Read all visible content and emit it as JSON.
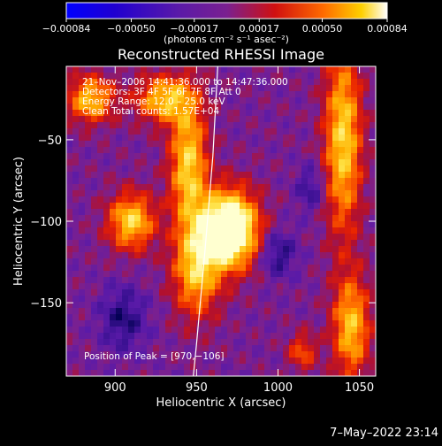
{
  "chart_data": {
    "type": "heatmap",
    "title": "Reconstructed RHESSI Image",
    "xlabel": "Heliocentric X (arcsec)",
    "ylabel": "Heliocentric Y (arcsec)",
    "xlim": [
      870,
      1060
    ],
    "ylim": [
      -195,
      -5
    ],
    "x_ticks": [
      900,
      950,
      1000,
      1050
    ],
    "x_tick_labels": [
      "900",
      "950",
      "1000",
      "1050"
    ],
    "y_ticks": [
      -50,
      -100,
      -150
    ],
    "y_tick_labels": [
      "−50",
      "−100",
      "−150"
    ],
    "colorbar": {
      "min": -0.00084,
      "max": 0.00084,
      "ticks": [
        -0.00084,
        -0.0005,
        -0.00017,
        0.00017,
        0.0005,
        0.00084
      ],
      "tick_labels": [
        "−0.00084",
        "−0.00050",
        "−0.00017",
        "0.00017",
        "0.00050",
        "0.00084"
      ],
      "unit_label": "(photons cm⁻² s⁻¹ asec⁻²)"
    },
    "annotations": [
      "21–Nov–2006 14:41:36.000 to 14:47:36.000",
      "Detectors: 3F 4F 5F 6F 7F 8F Att 0",
      "Energy Range: 12.0 – 25.0 keV",
      "Clean    Total counts: 1.57E+04"
    ],
    "peak_label": "Position of Peak = [970,−106]",
    "peak": [
      970,
      -106
    ],
    "limb": [
      [
        963,
        -5
      ],
      [
        960,
        -60
      ],
      [
        955,
        -120
      ],
      [
        950,
        -175
      ],
      [
        948,
        -195
      ]
    ],
    "sources": [
      {
        "x": 970,
        "y": -105,
        "sx": 12,
        "sy": 16,
        "amp": 1.0
      },
      {
        "x": 950,
        "y": -130,
        "sx": 10,
        "sy": 20,
        "amp": 0.5
      },
      {
        "x": 945,
        "y": -65,
        "sx": 8,
        "sy": 28,
        "amp": 0.55
      },
      {
        "x": 910,
        "y": -100,
        "sx": 10,
        "sy": 12,
        "amp": 0.55
      },
      {
        "x": 885,
        "y": -25,
        "sx": 10,
        "sy": 10,
        "amp": 0.5
      },
      {
        "x": 930,
        "y": -25,
        "sx": 12,
        "sy": 10,
        "amp": 0.5
      },
      {
        "x": 1040,
        "y": -50,
        "sx": 8,
        "sy": 40,
        "amp": 0.55
      },
      {
        "x": 1045,
        "y": -165,
        "sx": 8,
        "sy": 22,
        "amp": 0.5
      },
      {
        "x": 1015,
        "y": -180,
        "sx": 6,
        "sy": 8,
        "amp": 0.3
      },
      {
        "x": 1000,
        "y": -120,
        "sx": 8,
        "sy": 10,
        "amp": -0.25
      },
      {
        "x": 905,
        "y": -160,
        "sx": 10,
        "sy": 14,
        "amp": -0.25
      },
      {
        "x": 1020,
        "y": -80,
        "sx": 6,
        "sy": 10,
        "amp": -0.2
      }
    ]
  },
  "timestamp": "7–May–2022 23:14"
}
